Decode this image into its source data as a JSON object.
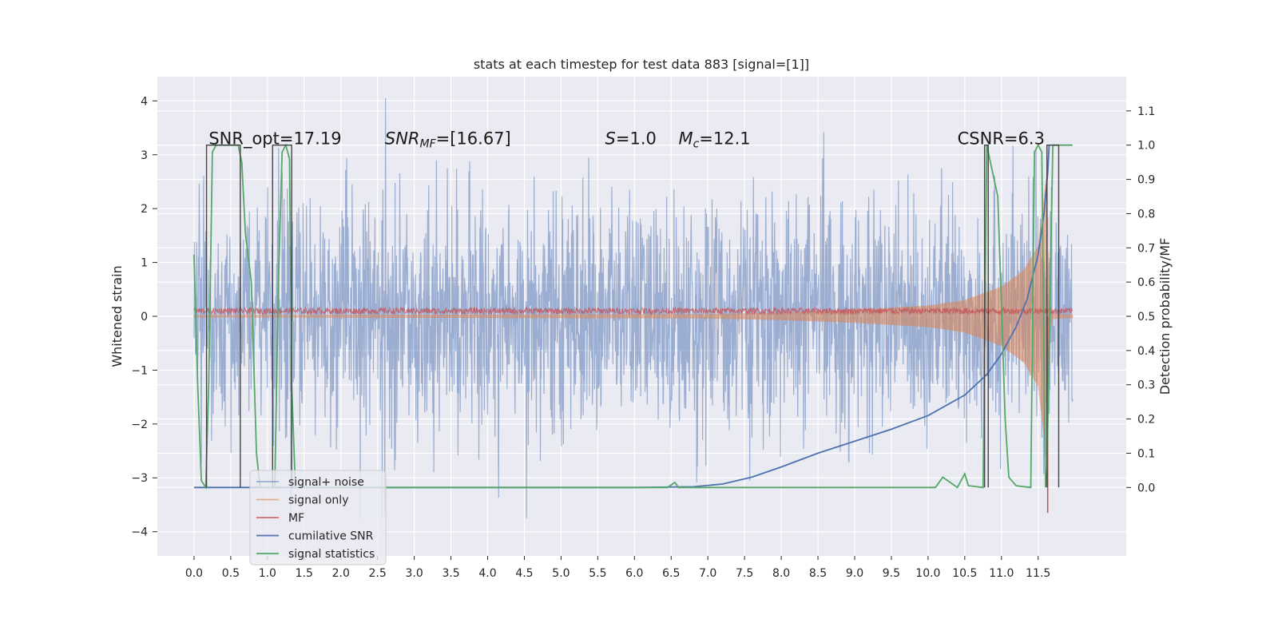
{
  "chart_data": {
    "type": "line",
    "title": "stats at each timestep for test data 883 [signal=[1]]",
    "xlabel": "",
    "ylabel": "Whitened strain",
    "y2label": "Detection probability/MF",
    "xlim": [
      -0.5,
      12.7
    ],
    "ylim": [
      -4.45,
      4.45
    ],
    "y2lim": [
      -0.2,
      1.2
    ],
    "xticks": [
      0.0,
      0.5,
      1.0,
      1.5,
      2.0,
      2.5,
      3.0,
      3.5,
      4.0,
      4.5,
      5.0,
      5.5,
      6.0,
      6.5,
      7.0,
      7.5,
      8.0,
      8.5,
      9.0,
      9.5,
      10.0,
      10.5,
      11.0,
      11.5
    ],
    "xtick_labels": [
      "0.0",
      "0.5",
      "1.0",
      "1.5",
      "2.0",
      "2.5",
      "3.0",
      "3.5",
      "4.0",
      "4.5",
      "5.0",
      "5.5",
      "6.0",
      "6.5",
      "7.0",
      "7.5",
      "8.0",
      "8.5",
      "9.0",
      "9.5",
      "10.0",
      "10.5",
      "11.0",
      "11.5"
    ],
    "yticks": [
      -4,
      -3,
      -2,
      -1,
      0,
      1,
      2,
      3,
      4
    ],
    "ytick_labels": [
      "−4",
      "−3",
      "−2",
      "−1",
      "0",
      "1",
      "2",
      "3",
      "4"
    ],
    "y2ticks": [
      0.0,
      0.1,
      0.2,
      0.3,
      0.4,
      0.5,
      0.6,
      0.7,
      0.8,
      0.9,
      1.0,
      1.1
    ],
    "y2tick_labels": [
      "0.0",
      "0.1",
      "0.2",
      "0.3",
      "0.4",
      "0.5",
      "0.6",
      "0.7",
      "0.8",
      "0.9",
      "1.0",
      "1.1"
    ],
    "grid": true,
    "legend_position": "lower-left",
    "annotations": [
      {
        "text": "SNR_opt=17.19",
        "x": 0.2,
        "y2": 1.0
      },
      {
        "text": "SNR",
        "sub": "MF",
        "rest": "=[16.67]",
        "italic": true,
        "x": 2.6,
        "y2": 1.0
      },
      {
        "text": "S",
        "sub": "",
        "rest": "=1.0",
        "italic": true,
        "x": 5.6,
        "y2": 1.0
      },
      {
        "text": "M",
        "sub": "c",
        "rest": "=12.1",
        "italic": true,
        "x": 6.6,
        "y2": 1.0
      },
      {
        "text": "CSNR=6.3",
        "x": 10.4,
        "y2": 1.0
      }
    ],
    "series": [
      {
        "name": "signal+ noise",
        "color": "#4c72b0",
        "axis": "left",
        "kind": "noise",
        "t_range": [
          0.0,
          11.97
        ],
        "envelope": 2.0
      },
      {
        "name": "signal only",
        "color": "#dd8452",
        "axis": "left",
        "kind": "chirp",
        "t_range": [
          0.0,
          11.97
        ],
        "amplitude_points": [
          [
            0.0,
            0.02
          ],
          [
            7.0,
            0.04
          ],
          [
            8.0,
            0.07
          ],
          [
            9.0,
            0.12
          ],
          [
            10.0,
            0.2
          ],
          [
            10.5,
            0.3
          ],
          [
            11.0,
            0.55
          ],
          [
            11.3,
            0.85
          ],
          [
            11.5,
            1.3
          ],
          [
            11.62,
            2.7
          ],
          [
            11.65,
            0.3
          ],
          [
            11.7,
            0.05
          ],
          [
            11.97,
            0.03
          ]
        ]
      },
      {
        "name": "MF",
        "color": "#c44e52",
        "axis": "left",
        "kind": "mf",
        "t_range": [
          0.0,
          11.97
        ],
        "baseline": 0.1,
        "spread": 0.06
      },
      {
        "name": "cumilative SNR",
        "color": "#4c72b0",
        "axis": "right",
        "points": [
          [
            0.0,
            0.0
          ],
          [
            6.0,
            0.0
          ],
          [
            6.8,
            0.002
          ],
          [
            7.2,
            0.01
          ],
          [
            7.6,
            0.03
          ],
          [
            8.0,
            0.06
          ],
          [
            8.5,
            0.1
          ],
          [
            9.0,
            0.135
          ],
          [
            9.5,
            0.17
          ],
          [
            10.0,
            0.21
          ],
          [
            10.5,
            0.27
          ],
          [
            10.8,
            0.33
          ],
          [
            11.0,
            0.39
          ],
          [
            11.2,
            0.47
          ],
          [
            11.35,
            0.55
          ],
          [
            11.5,
            0.68
          ],
          [
            11.58,
            0.8
          ],
          [
            11.63,
            0.92
          ],
          [
            11.65,
            1.0
          ]
        ]
      },
      {
        "name": "signal statistics",
        "color": "#55a868",
        "axis": "right",
        "points": [
          [
            0.0,
            0.68
          ],
          [
            0.05,
            0.3
          ],
          [
            0.1,
            0.02
          ],
          [
            0.16,
            0.0
          ],
          [
            0.2,
            0.3
          ],
          [
            0.25,
            0.98
          ],
          [
            0.3,
            1.0
          ],
          [
            0.6,
            1.0
          ],
          [
            0.65,
            0.95
          ],
          [
            0.7,
            0.74
          ],
          [
            0.78,
            0.6
          ],
          [
            0.85,
            0.1
          ],
          [
            0.9,
            0.0
          ],
          [
            1.1,
            0.0
          ],
          [
            1.15,
            0.6
          ],
          [
            1.2,
            0.98
          ],
          [
            1.25,
            1.0
          ],
          [
            1.3,
            0.96
          ],
          [
            1.33,
            0.3
          ],
          [
            1.38,
            0.0
          ],
          [
            6.45,
            0.0
          ],
          [
            6.55,
            0.015
          ],
          [
            6.6,
            0.0
          ],
          [
            10.1,
            0.0
          ],
          [
            10.2,
            0.03
          ],
          [
            10.3,
            0.015
          ],
          [
            10.4,
            0.0
          ],
          [
            10.5,
            0.04
          ],
          [
            10.55,
            0.005
          ],
          [
            10.75,
            0.0
          ],
          [
            10.8,
            1.0
          ],
          [
            10.95,
            0.85
          ],
          [
            11.05,
            0.2
          ],
          [
            11.1,
            0.03
          ],
          [
            11.2,
            0.005
          ],
          [
            11.4,
            0.0
          ],
          [
            11.45,
            0.98
          ],
          [
            11.5,
            1.0
          ],
          [
            11.55,
            0.98
          ],
          [
            11.6,
            0.0
          ],
          [
            11.62,
            0.05
          ],
          [
            11.7,
            1.0
          ],
          [
            11.97,
            1.0
          ]
        ]
      }
    ],
    "trigger_segments": [
      {
        "x_start": 0.17,
        "x_end": 0.63
      },
      {
        "x_start": 1.07,
        "x_end": 1.33
      },
      {
        "x_start": 10.77,
        "x_end": 10.82
      },
      {
        "x_start": 11.62,
        "x_end": 11.78
      }
    ]
  }
}
